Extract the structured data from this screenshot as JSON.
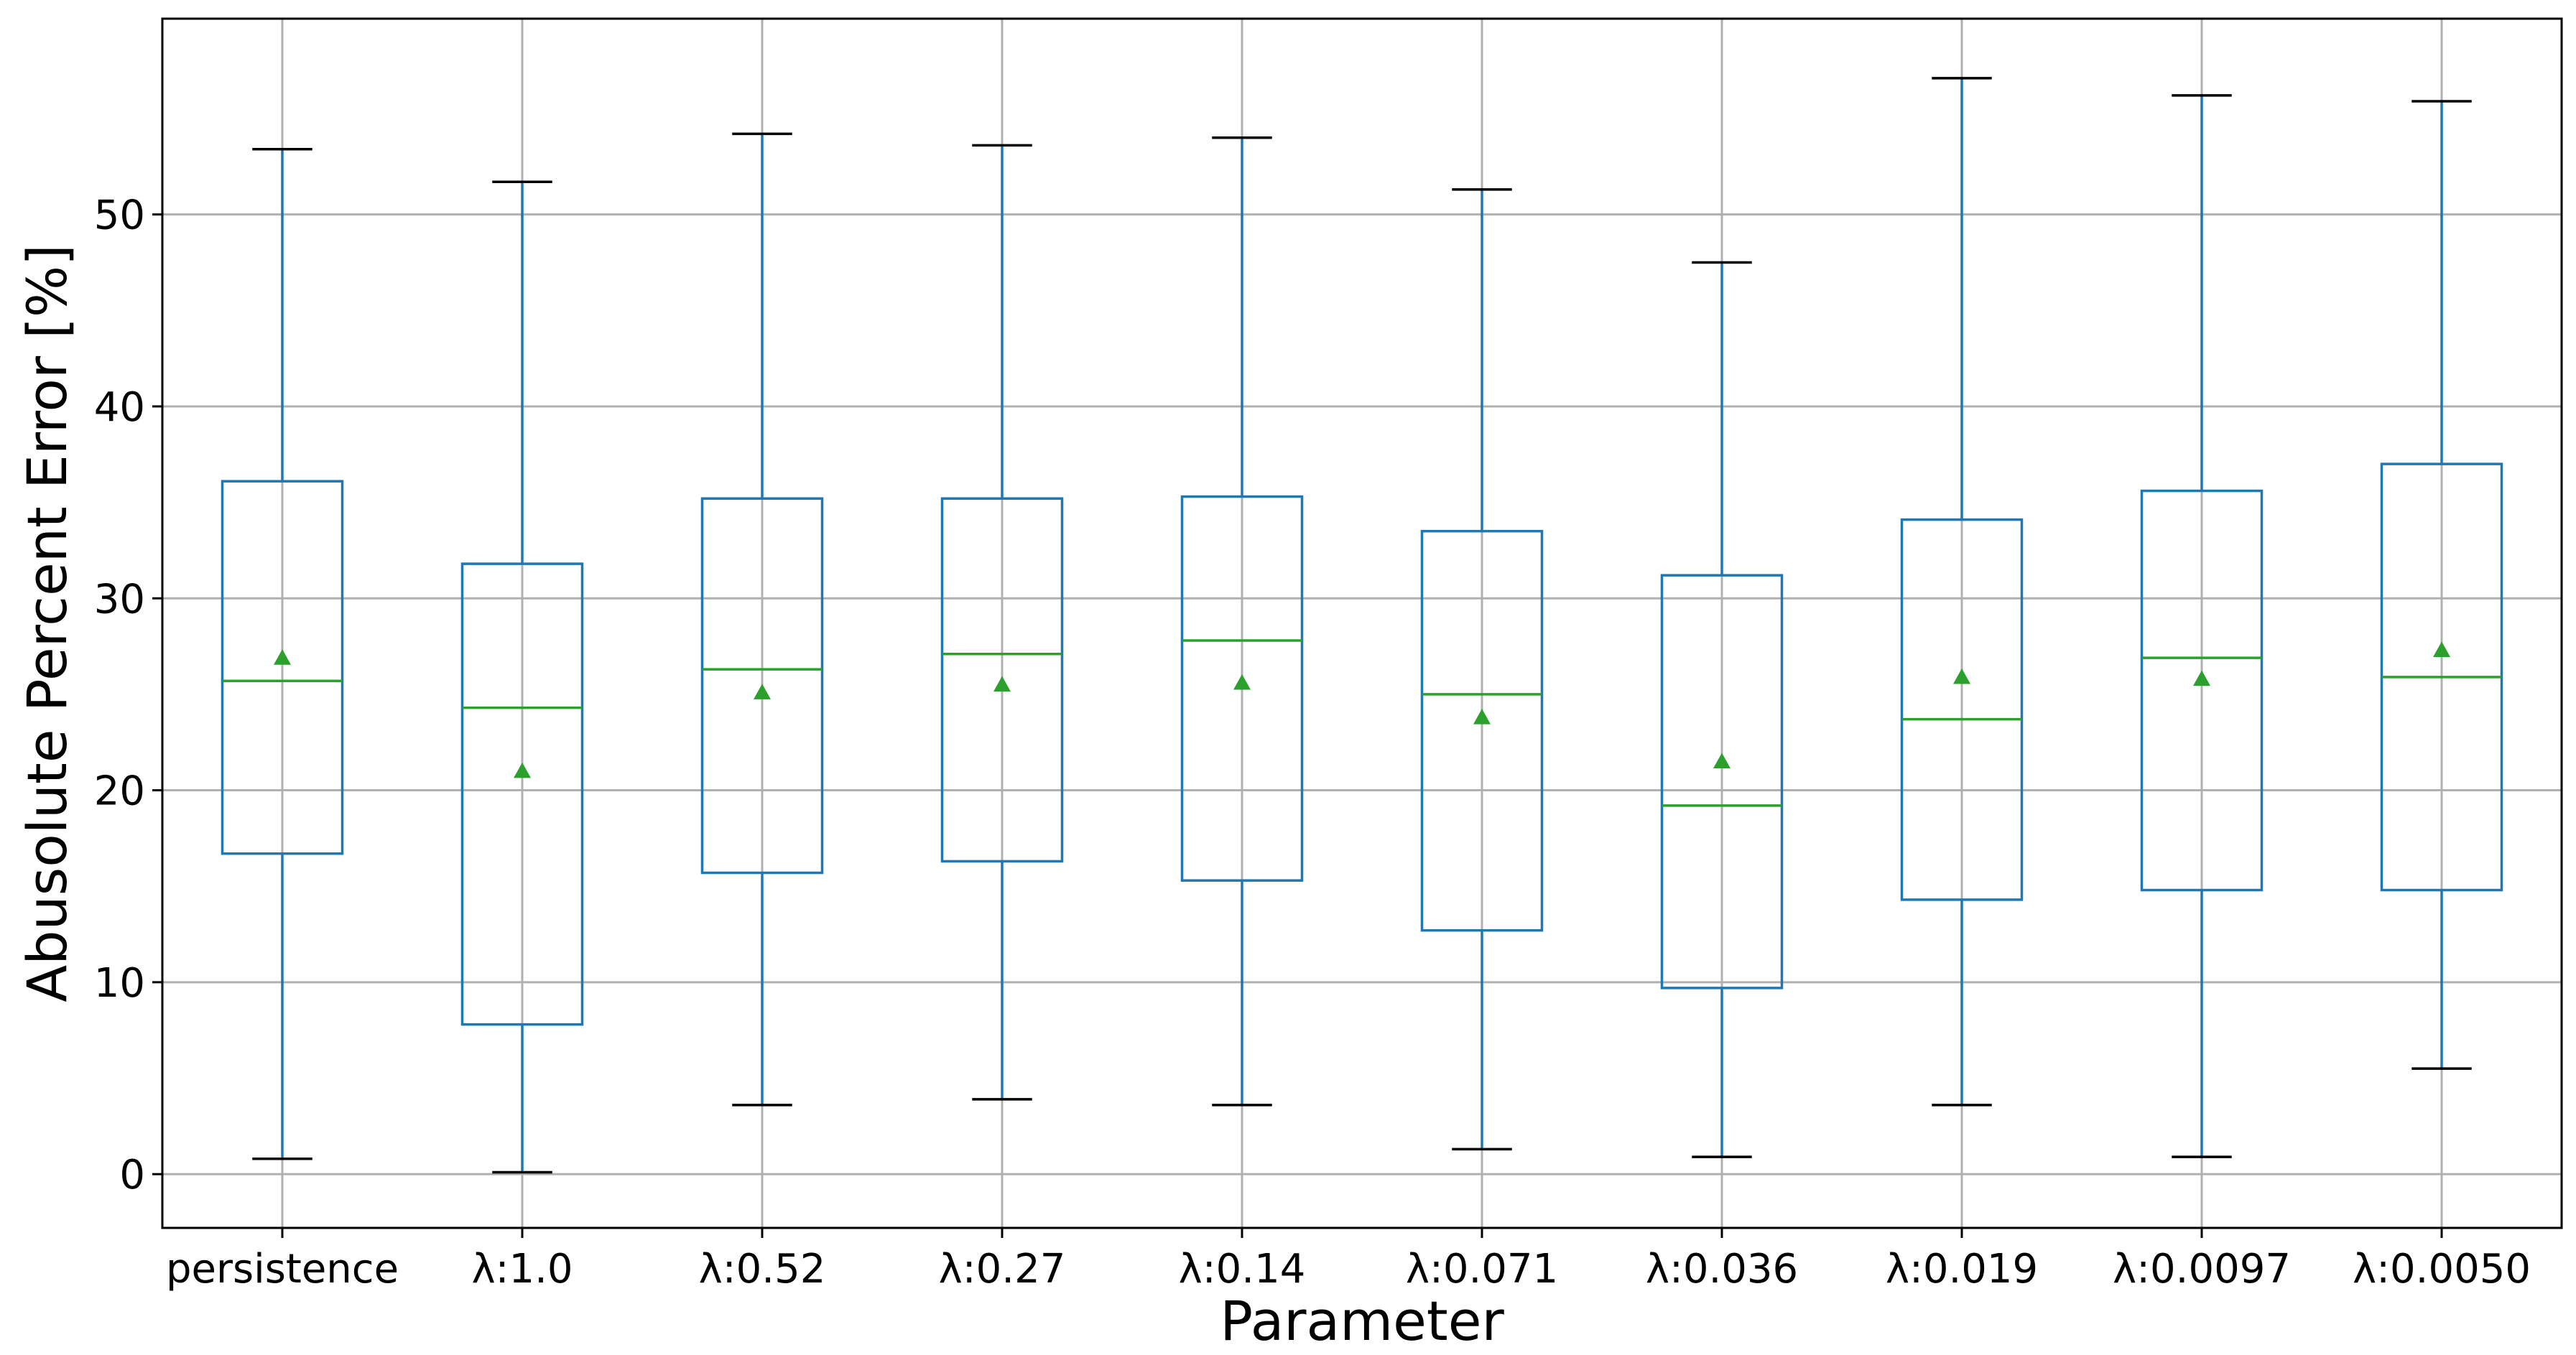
{
  "chart_data": {
    "type": "box",
    "xlabel": "Parameter",
    "ylabel": "Abusolute Percent Error [%]",
    "ylim": [
      -2.8,
      60.2
    ],
    "yticks": [
      0,
      10,
      20,
      30,
      40,
      50
    ],
    "grid": true,
    "colors": {
      "box": "#1f77b4",
      "median": "#2ca02c",
      "mean": "#2ca02c",
      "cap": "#000000"
    },
    "boxes": [
      {
        "label": "persistence",
        "whisker_low": 0.8,
        "q1": 16.7,
        "median": 25.7,
        "q3": 36.1,
        "whisker_high": 53.4,
        "mean": 26.9
      },
      {
        "label": "λ:1.0",
        "whisker_low": 0.1,
        "q1": 7.8,
        "median": 24.3,
        "q3": 31.8,
        "whisker_high": 51.7,
        "mean": 21.0
      },
      {
        "label": "λ:0.52",
        "whisker_low": 3.6,
        "q1": 15.7,
        "median": 26.3,
        "q3": 35.2,
        "whisker_high": 54.2,
        "mean": 25.1
      },
      {
        "label": "λ:0.27",
        "whisker_low": 3.9,
        "q1": 16.3,
        "median": 27.1,
        "q3": 35.2,
        "whisker_high": 53.6,
        "mean": 25.5
      },
      {
        "label": "λ:0.14",
        "whisker_low": 3.6,
        "q1": 15.3,
        "median": 27.8,
        "q3": 35.3,
        "whisker_high": 54.0,
        "mean": 25.6
      },
      {
        "label": "λ:0.071",
        "whisker_low": 1.3,
        "q1": 12.7,
        "median": 25.0,
        "q3": 33.5,
        "whisker_high": 51.3,
        "mean": 23.8
      },
      {
        "label": "λ:0.036",
        "whisker_low": 0.9,
        "q1": 9.7,
        "median": 19.2,
        "q3": 31.2,
        "whisker_high": 47.5,
        "mean": 21.5
      },
      {
        "label": "λ:0.019",
        "whisker_low": 3.6,
        "q1": 14.3,
        "median": 23.7,
        "q3": 34.1,
        "whisker_high": 57.1,
        "mean": 25.9
      },
      {
        "label": "λ:0.0097",
        "whisker_low": 0.9,
        "q1": 14.8,
        "median": 26.9,
        "q3": 35.6,
        "whisker_high": 56.2,
        "mean": 25.8
      },
      {
        "label": "λ:0.0050",
        "whisker_low": 5.5,
        "q1": 14.8,
        "median": 25.9,
        "q3": 37.0,
        "whisker_high": 55.9,
        "mean": 27.3
      }
    ]
  }
}
